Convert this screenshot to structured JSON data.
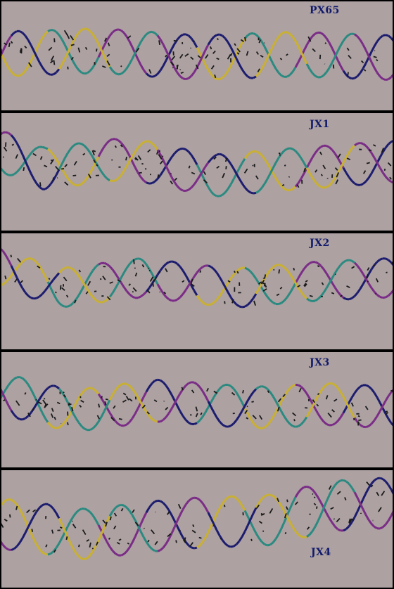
{
  "figure": {
    "panels": [
      {
        "label": "PX65"
      },
      {
        "label": "JX1"
      },
      {
        "label": "JX2"
      },
      {
        "label": "JX3"
      },
      {
        "label": "JX4"
      }
    ]
  },
  "colors": {
    "background": "#ada1a2",
    "separator": "#000000",
    "label": "#111a6b",
    "strand_yellow": "#c9b032",
    "strand_teal": "#2a8a80",
    "strand_purple": "#7a2c86",
    "strand_navy": "#1c1c6e",
    "strand_dark": "#1a1a1a"
  }
}
